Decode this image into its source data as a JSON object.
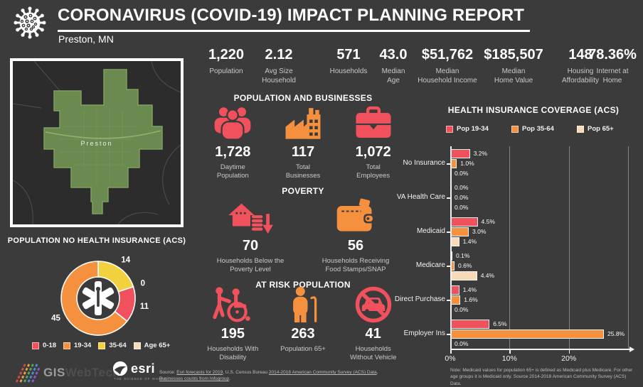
{
  "colors": {
    "background": "#3B3B3B",
    "red": "#F1515C",
    "orange": "#F5913E",
    "yellow": "#F2D13E",
    "peach": "#F7DBB7",
    "map_green": "#6B8A4F",
    "text": "#FFFFFF",
    "muted_text": "#C9C9C9"
  },
  "header": {
    "title": "CORONAVIRUS (COVID-19) IMPACT PLANNING REPORT",
    "subtitle": "Preston, MN"
  },
  "stats": [
    {
      "value": "1,220",
      "label1": "Population",
      "label2": ""
    },
    {
      "value": "2.12",
      "label1": "Avg Size",
      "label2": "Household"
    },
    {
      "value": "571",
      "label1": "Households",
      "label2": ""
    },
    {
      "value": "43.0",
      "label1": "Median",
      "label2": "Age"
    },
    {
      "value": "$51,762",
      "label1": "Median",
      "label2": "Household Income"
    },
    {
      "value": "$185,507",
      "label1": "Median",
      "label2": "Home Value"
    },
    {
      "value": "148",
      "label1": "Housing",
      "label2": "Affordability"
    },
    {
      "value": "78.36%",
      "label1": "Internet at",
      "label2": "Home"
    }
  ],
  "map": {
    "place_label": "Preston"
  },
  "pop_biz": {
    "title": "POPULATION AND BUSINESSES",
    "items": [
      {
        "value": "1,728",
        "label1": "Daytime",
        "label2": "Population",
        "icon": "people-icon"
      },
      {
        "value": "117",
        "label1": "Total",
        "label2": "Businesses",
        "icon": "factory-icon"
      },
      {
        "value": "1,072",
        "label1": "Total",
        "label2": "Employees",
        "icon": "briefcase-icon"
      }
    ]
  },
  "poverty": {
    "title": "POVERTY",
    "items": [
      {
        "value": "70",
        "label1": "Households Below the",
        "label2": "Poverty Level",
        "icon": "house-decline-icon"
      },
      {
        "value": "56",
        "label1": "Households Receiving",
        "label2": "Food Stamps/SNAP",
        "icon": "wallet-icon"
      }
    ]
  },
  "at_risk": {
    "title": "AT RISK POPULATION",
    "items": [
      {
        "value": "195",
        "label1": "Households With",
        "label2": "Disability",
        "icon": "wheelchair-icon"
      },
      {
        "value": "263",
        "label1": "Population 65+",
        "label2": "",
        "icon": "elderly-icon"
      },
      {
        "value": "41",
        "label1": "Households",
        "label2": "Without Vehicle",
        "icon": "no-vehicle-icon"
      }
    ]
  },
  "donut_panel": {
    "title": "POPULATION NO HEALTH INSURANCE (ACS)",
    "legend": [
      {
        "label": "0-18",
        "color": "#F1515C"
      },
      {
        "label": "19-34",
        "color": "#F5913E"
      },
      {
        "label": "35-64",
        "color": "#F2D13E"
      },
      {
        "label": "Age 65+",
        "color": "#F7DBB7"
      }
    ]
  },
  "bar_panel": {
    "title": "HEALTH INSURANCE COVERAGE (ACS)",
    "legend": [
      {
        "label": "Pop 19-34",
        "color": "#F1515C"
      },
      {
        "label": "Pop 35-64",
        "color": "#F5913E"
      },
      {
        "label": "Pop 65+",
        "color": "#F7DBB7"
      }
    ],
    "note": "Note: Medicaid values for population 65+ is defined as Medicaid plus Medicare. For other age groups it is Medicaid only.  Source 2014-2018 American Community Survey (ACS) Data."
  },
  "chart_data": [
    {
      "type": "pie",
      "subtype": "donut",
      "title": "POPULATION NO HEALTH INSURANCE (ACS)",
      "labels": [
        "0-18",
        "19-34",
        "35-64",
        "Age 65+"
      ],
      "values": [
        11,
        45,
        14,
        0
      ],
      "colors": [
        "#F1515C",
        "#F5913E",
        "#F2D13E",
        "#F7DBB7"
      ],
      "draw_order_from_top_clockwise": [
        "35-64",
        "Age 65+",
        "0-18",
        "19-34"
      ],
      "center_icon": "star-of-life-icon",
      "legend_position": "bottom"
    },
    {
      "type": "bar",
      "orientation": "horizontal",
      "title": "HEALTH INSURANCE COVERAGE (ACS)",
      "categories": [
        "No Insurance",
        "VA Health Care",
        "Medicaid",
        "Medicare",
        "Direct Purchase",
        "Employer Ins"
      ],
      "series": [
        {
          "name": "Pop 19-34",
          "color": "#F1515C",
          "values": [
            3.2,
            0.0,
            4.5,
            0.1,
            1.4,
            6.5
          ]
        },
        {
          "name": "Pop 35-64",
          "color": "#F5913E",
          "values": [
            1.0,
            0.0,
            3.0,
            0.6,
            1.6,
            25.8
          ]
        },
        {
          "name": "Pop 65+",
          "color": "#F7DBB7",
          "values": [
            0.0,
            0.0,
            1.4,
            4.4,
            0.0,
            0.0
          ]
        }
      ],
      "value_suffix": "%",
      "xlim": [
        0,
        30
      ],
      "xticks": [
        {
          "value": 0,
          "label": "0%"
        },
        {
          "value": 10,
          "label": "10%"
        },
        {
          "value": 20,
          "label": "20%"
        }
      ],
      "gridlines": [
        10,
        20,
        30
      ],
      "legend_position": "top"
    }
  ],
  "footer": {
    "giswebtech_gis": "GIS",
    "giswebtech_web": "WebTech",
    "esri_name": "esri",
    "esri_tagline": "THE SCIENCE OF WHERE",
    "source_parts": [
      {
        "text": "Source: "
      },
      {
        "text": "Esri forecasts for 2019",
        "link": true
      },
      {
        "text": ", U.S. Census Bureau "
      },
      {
        "text": "2014-2018 American Community Survey (ACS) Data",
        "link": true
      },
      {
        "text": ", "
      },
      {
        "text": "Businesses counts from Infogroup",
        "link": true
      },
      {
        "text": "."
      }
    ]
  }
}
